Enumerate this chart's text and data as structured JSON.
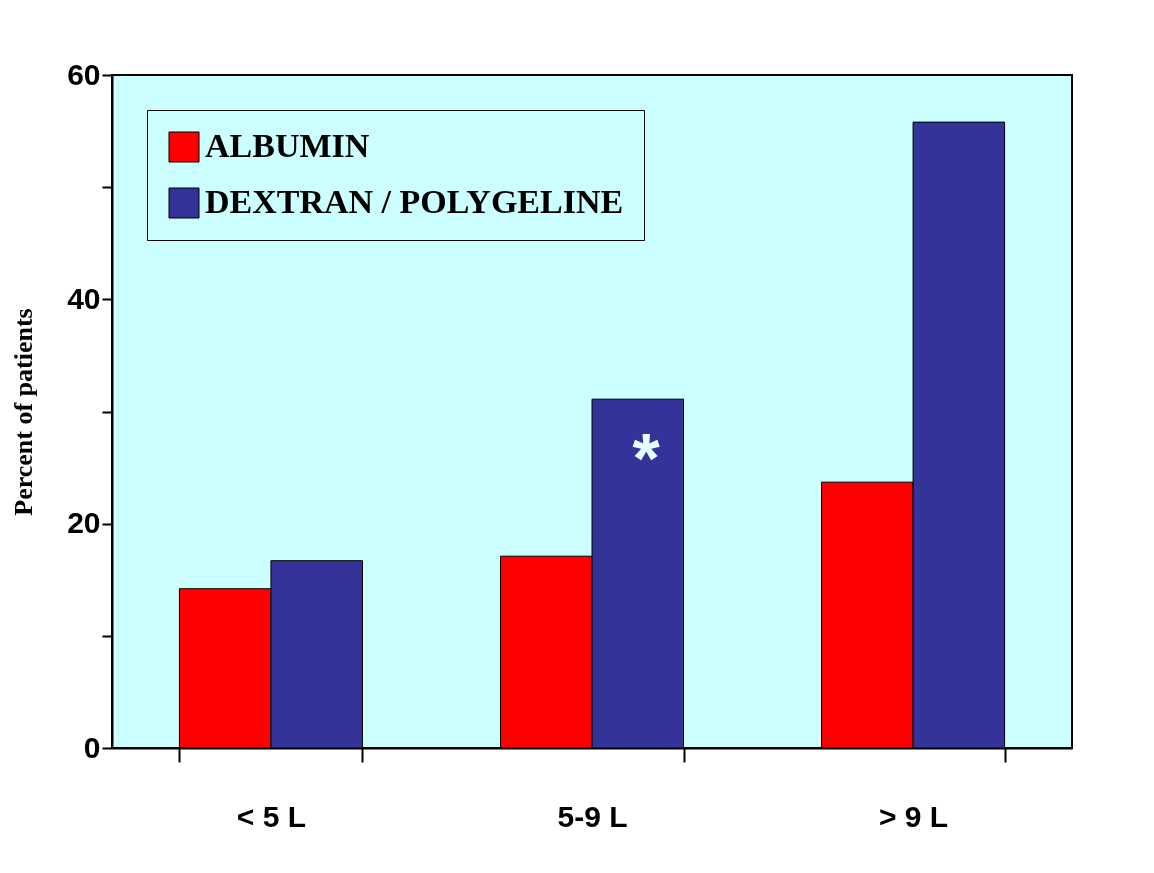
{
  "chart_data": {
    "type": "bar",
    "ylabel": "Percent of patients",
    "categories": [
      "< 5 L",
      "5-9 L",
      "> 9 L"
    ],
    "series": [
      {
        "name": "ALBUMIN",
        "color": "#ff0000",
        "values": [
          14.2,
          17.1,
          23.7
        ]
      },
      {
        "name": "DEXTRAN / POLYGELINE",
        "color": "#333399",
        "values": [
          16.7,
          31.1,
          55.8
        ]
      }
    ],
    "ylim": [
      0,
      60
    ],
    "yticks": [
      0,
      {
        "value": 10,
        "label": null
      },
      20,
      {
        "value": 30,
        "label": null
      },
      40,
      {
        "value": 50,
        "label": null
      },
      60
    ],
    "grid": false,
    "legend": "top left",
    "annotations": [
      {
        "text": "*",
        "x": "5-9 L",
        "y": 25.5
      }
    ]
  }
}
